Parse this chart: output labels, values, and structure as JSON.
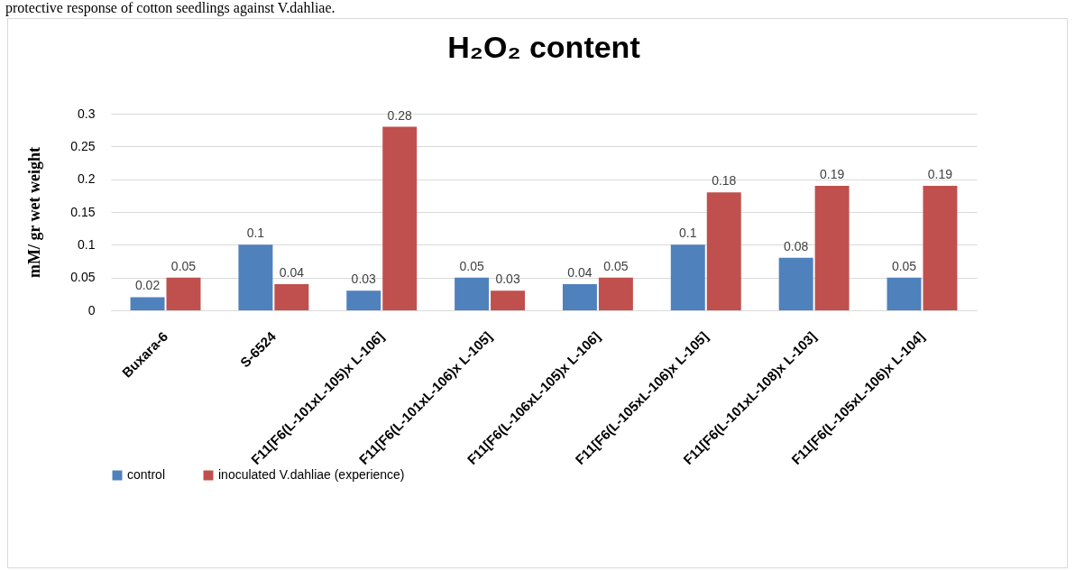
{
  "chart_data": {
    "type": "bar",
    "title": "H₂O₂ content",
    "ylabel": "mM/ gr wet weight",
    "annotations": [
      "protective response of cotton seedlings against V.dahliae."
    ],
    "categories": [
      "Buxara-6",
      "S-6524",
      "F11[F6(L-101xL-105)x L-106]",
      "F11[F6(L-101xL-106)x L-105]",
      "F11[F6(L-106xL-105)x L-106]",
      "F11[F6(L-105xL-106)x L-105]",
      "F11[F6(L-101xL-108)x L-103]",
      "F11[F6(L-105xL-106)x L-104]"
    ],
    "series": [
      {
        "name": "control",
        "color": "#4f81bd",
        "values": [
          0.02,
          0.1,
          0.03,
          0.05,
          0.04,
          0.1,
          0.08,
          0.05
        ]
      },
      {
        "name": "inoculated V.dahliae (experience)",
        "color": "#c0504d",
        "values": [
          0.05,
          0.04,
          0.28,
          0.03,
          0.05,
          0.18,
          0.19,
          0.19
        ]
      }
    ],
    "ylim": [
      0,
      0.3
    ],
    "yticks": [
      0,
      0.05,
      0.1,
      0.15,
      0.2,
      0.25,
      0.3
    ],
    "grid": "y",
    "legend": "bottom",
    "data_labels": true
  }
}
